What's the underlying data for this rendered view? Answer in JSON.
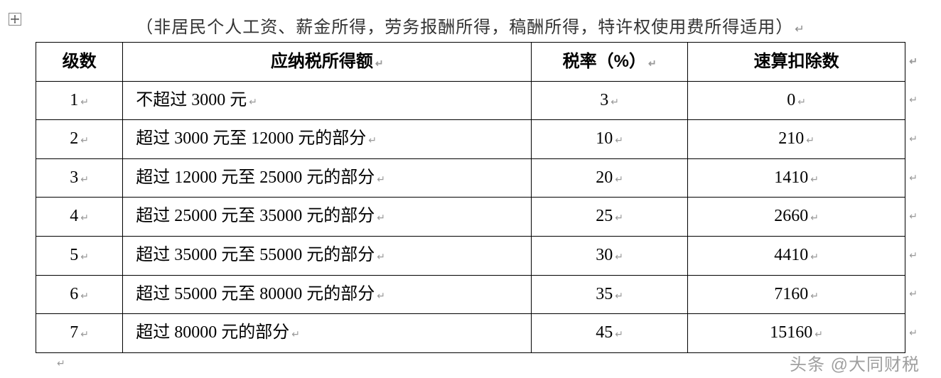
{
  "caption": "（非居民个人工资、薪金所得，劳务报酬所得，稿酬所得，特许权使用费所得适用）",
  "return_mark": "↵",
  "anchor_icon_name": "move-anchor-icon",
  "watermark": "头条 @大同财税",
  "table": {
    "columns": [
      {
        "label": "级数",
        "align": "center"
      },
      {
        "label": "应纳税所得额",
        "align": "center"
      },
      {
        "label": "税率（%）",
        "align": "center"
      },
      {
        "label": "速算扣除数",
        "align": "center"
      }
    ],
    "column_widths_pct": [
      10,
      47,
      18,
      25
    ],
    "rows": [
      {
        "level": "1",
        "desc": "不超过 3000 元",
        "rate": "3",
        "deduct": "0"
      },
      {
        "level": "2",
        "desc": "超过 3000 元至 12000 元的部分",
        "rate": "10",
        "deduct": "210"
      },
      {
        "level": "3",
        "desc": "超过 12000 元至 25000 元的部分",
        "rate": "20",
        "deduct": "1410"
      },
      {
        "level": "4",
        "desc": "超过 25000 元至 35000 元的部分",
        "rate": "25",
        "deduct": "2660"
      },
      {
        "level": "5",
        "desc": "超过 35000 元至 55000 元的部分",
        "rate": "30",
        "deduct": "4410"
      },
      {
        "level": "6",
        "desc": "超过 55000 元至 80000 元的部分",
        "rate": "35",
        "deduct": "7160"
      },
      {
        "level": "7",
        "desc": "超过 80000 元的部分",
        "rate": "45",
        "deduct": "15160"
      }
    ],
    "border_color": "#000000",
    "background_color": "#ffffff",
    "header_font_family": "SimHei",
    "body_font_family": "SimSun",
    "font_size_pt": 18
  }
}
